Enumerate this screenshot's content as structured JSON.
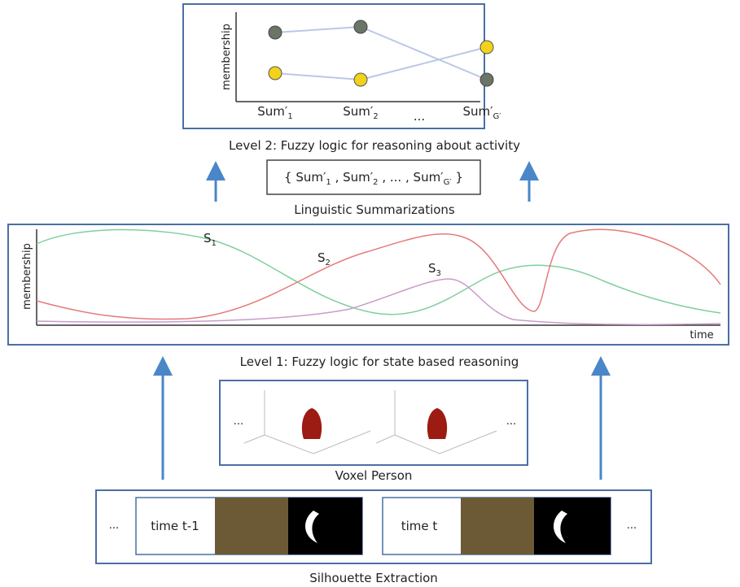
{
  "level2": {
    "y_label": "membership",
    "x_labels": [
      {
        "base": "Sum′",
        "sub": "1"
      },
      {
        "base": "Sum′",
        "sub": "2"
      },
      {
        "base": "...",
        "sub": ""
      },
      {
        "base": "Sum′",
        "sub": "G′"
      }
    ],
    "caption": "Level 2: Fuzzy logic for reasoning about activity"
  },
  "summary_set": {
    "open": "{",
    "separator": ",",
    "ellipsis": "...",
    "close": "}",
    "items": [
      {
        "base": "Sum′",
        "sub": "1"
      },
      {
        "base": "Sum′",
        "sub": "2"
      },
      {
        "base": "Sum′",
        "sub": "G′"
      }
    ],
    "caption": "Linguistic Summarizations"
  },
  "level1": {
    "y_label": "membership",
    "x_label": "time",
    "states": [
      {
        "base": "S",
        "sub": "1"
      },
      {
        "base": "S",
        "sub": "2"
      },
      {
        "base": "S",
        "sub": "3"
      }
    ],
    "caption": "Level 1: Fuzzy logic for state based reasoning"
  },
  "voxel": {
    "ellipsis": "...",
    "caption": "Voxel Person"
  },
  "silhouette": {
    "ellipsis": "...",
    "frames": [
      "time t-1",
      "time t"
    ],
    "caption": "Silhouette Extraction"
  }
}
